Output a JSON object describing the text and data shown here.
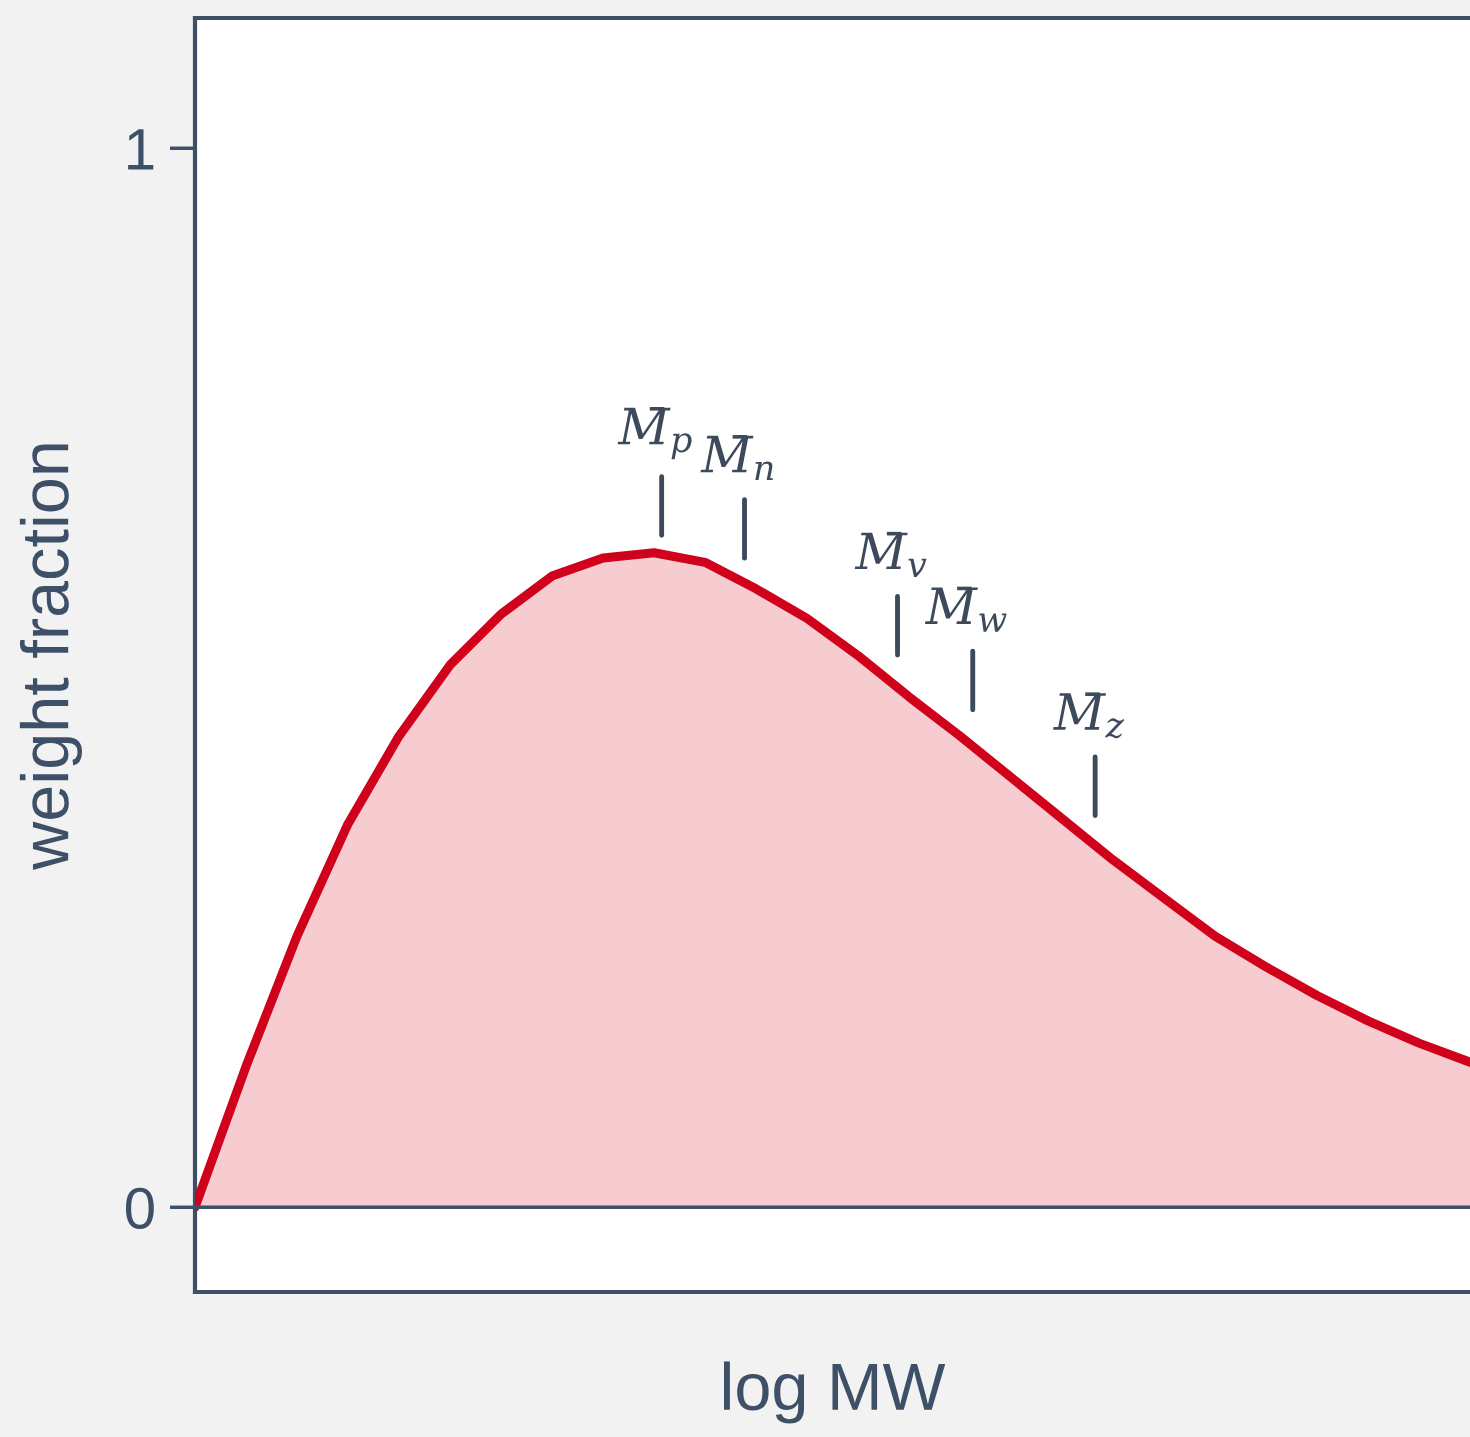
{
  "chart_data": {
    "type": "area",
    "xlabel": "log MW",
    "ylabel": "weight fraction",
    "categories": [
      null,
      null,
      null,
      null,
      null,
      null,
      null,
      null,
      null,
      null,
      null,
      null,
      null,
      null,
      null,
      null,
      null,
      null,
      null,
      null,
      null,
      null,
      null,
      null,
      null,
      null
    ],
    "series": [
      {
        "color": "#d0021b",
        "values": [
          0,
          0.133,
          0.256,
          0.362,
          0.445,
          0.512,
          0.56,
          0.596,
          0.613,
          0.618,
          0.609,
          0.584,
          0.556,
          0.521,
          0.482,
          0.445,
          0.406,
          0.367,
          0.328,
          0.292,
          0.256,
          0.227,
          0.2,
          0.176,
          0.155,
          0.137
        ]
      }
    ],
    "ylim": [
      -0.08,
      1.123
    ],
    "yticks": [
      0,
      1
    ],
    "tick_labels": "y",
    "grid": false,
    "ref_lines": [
      {
        "axis": "y",
        "value": 0,
        "color": "#3d5068"
      }
    ],
    "annotations": [
      "M̄$_{p}$",
      "M̄$_{n}$",
      "M̄$_{v}$",
      "M̄$_{w}$",
      "M̄$_{z}$"
    ]
  }
}
